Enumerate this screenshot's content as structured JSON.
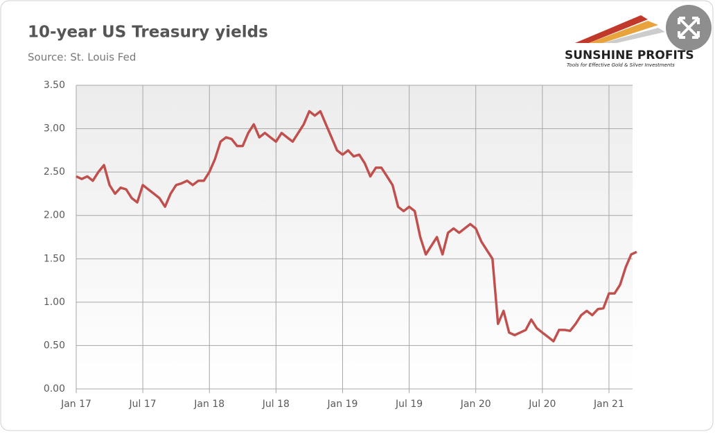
{
  "chart_data": {
    "type": "line",
    "title": "10-year US Treasury yields",
    "subtitle": "Source: St. Louis Fed",
    "logo": {
      "name": "SUNSHINE PROFITS",
      "tagline": "Tools for Effective Gold & Silver Investments"
    },
    "color": "#c0504d",
    "categories": [
      "Jan 17",
      null,
      null,
      null,
      null,
      null,
      null,
      null,
      null,
      null,
      null,
      null,
      "Jul 17",
      null,
      null,
      null,
      null,
      null,
      null,
      null,
      null,
      null,
      null,
      null,
      "Jan 18",
      null,
      null,
      null,
      null,
      null,
      null,
      null,
      null,
      null,
      null,
      null,
      "Jul 18",
      null,
      null,
      null,
      null,
      null,
      null,
      null,
      null,
      null,
      null,
      null,
      "Jan 19",
      null,
      null,
      null,
      null,
      null,
      null,
      null,
      null,
      null,
      null,
      null,
      "Jul 19",
      null,
      null,
      null,
      null,
      null,
      null,
      null,
      null,
      null,
      null,
      null,
      "Jan 20",
      null,
      null,
      null,
      null,
      null,
      null,
      null,
      null,
      null,
      null,
      null,
      "Jul 20",
      null,
      null,
      null,
      null,
      null,
      null,
      null,
      null,
      null,
      null,
      null,
      "Jan 21",
      null,
      null,
      null,
      null,
      null
    ],
    "values": [
      2.45,
      2.42,
      2.45,
      2.4,
      2.5,
      2.58,
      2.35,
      2.25,
      2.32,
      2.3,
      2.2,
      2.15,
      2.35,
      2.3,
      2.25,
      2.2,
      2.1,
      2.25,
      2.35,
      2.37,
      2.4,
      2.35,
      2.4,
      2.4,
      2.5,
      2.65,
      2.85,
      2.9,
      2.88,
      2.8,
      2.8,
      2.95,
      3.05,
      2.9,
      2.95,
      2.9,
      2.85,
      2.95,
      2.9,
      2.85,
      2.95,
      3.05,
      3.2,
      3.15,
      3.2,
      3.05,
      2.9,
      2.75,
      2.7,
      2.75,
      2.68,
      2.7,
      2.6,
      2.45,
      2.55,
      2.55,
      2.45,
      2.35,
      2.1,
      2.05,
      2.1,
      2.05,
      1.75,
      1.55,
      1.65,
      1.75,
      1.55,
      1.8,
      1.85,
      1.8,
      1.85,
      1.9,
      1.85,
      1.7,
      1.6,
      1.5,
      0.75,
      0.9,
      0.65,
      0.62,
      0.65,
      0.68,
      0.8,
      0.7,
      0.65,
      0.6,
      0.55,
      0.68,
      0.68,
      0.67,
      0.75,
      0.85,
      0.9,
      0.85,
      0.92,
      0.93,
      1.1,
      1.1,
      1.2,
      1.4,
      1.55,
      1.58
    ],
    "ylim": [
      0,
      3.5
    ],
    "yticks": [
      {
        "value": 0,
        "label": "0.00"
      },
      {
        "value": 0.5,
        "label": "0.50"
      },
      {
        "value": 1,
        "label": "1.00"
      },
      {
        "value": 1.5,
        "label": "1.50"
      },
      {
        "value": 2,
        "label": "2.00"
      },
      {
        "value": 2.5,
        "label": "2.50"
      },
      {
        "value": 3,
        "label": "3.00"
      },
      {
        "value": 3.5,
        "label": "3.50"
      }
    ],
    "grid": true
  }
}
